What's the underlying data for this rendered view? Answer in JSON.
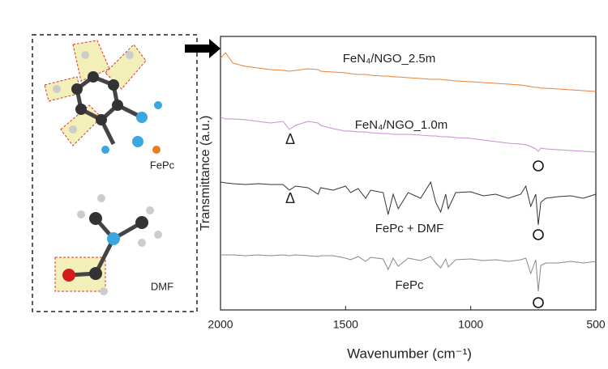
{
  "chart_data": {
    "type": "line",
    "xlabel": "Wavenumber (cm⁻¹)",
    "ylabel": "Transmittance (a.u.)",
    "xlim": [
      2000,
      500
    ],
    "xticks": [
      2000,
      1500,
      1000,
      500
    ],
    "ylim": [
      0,
      338
    ],
    "x": [
      2000,
      1980,
      1950,
      1900,
      1850,
      1800,
      1750,
      1725,
      1700,
      1650,
      1610,
      1600,
      1550,
      1500,
      1480,
      1450,
      1420,
      1400,
      1350,
      1330,
      1310,
      1290,
      1250,
      1200,
      1160,
      1140,
      1120,
      1100,
      1090,
      1060,
      1000,
      950,
      900,
      850,
      800,
      780,
      760,
      740,
      730,
      720,
      700,
      650,
      600,
      550,
      500
    ],
    "series": [
      {
        "name": "FeN₄/NGO_2.5m",
        "color": "#e8823a",
        "values": [
          311,
          318,
          305,
          301,
          299,
          297,
          296,
          295,
          296,
          298,
          297,
          295,
          294,
          293,
          292,
          291,
          291,
          290,
          289,
          289,
          288,
          288,
          287,
          286,
          285,
          285,
          285,
          284,
          284,
          283,
          282,
          281,
          280,
          279,
          278,
          277,
          276,
          275,
          275,
          274,
          274,
          273,
          272,
          271,
          270
        ]
      },
      {
        "name": "FeN₄/NGO_1.0m",
        "color": "#c88fd0",
        "values": [
          238,
          236,
          236,
          235,
          233,
          231,
          233,
          223,
          228,
          233,
          231,
          228,
          224,
          221,
          221,
          220,
          220,
          219,
          218,
          218,
          217,
          217,
          217,
          216,
          215,
          215,
          214,
          214,
          214,
          213,
          212,
          210,
          208,
          206,
          205,
          204,
          202,
          199,
          196,
          200,
          199,
          198,
          197,
          196,
          195
        ]
      },
      {
        "name": "FePc + DMF",
        "color": "#333333",
        "values": [
          158,
          157,
          156,
          155,
          156,
          155,
          155,
          148,
          153,
          151,
          143,
          151,
          148,
          153,
          145,
          150,
          138,
          148,
          145,
          118,
          143,
          125,
          145,
          138,
          158,
          133,
          121,
          143,
          125,
          145,
          146,
          141,
          143,
          138,
          143,
          153,
          128,
          143,
          105,
          133,
          138,
          140,
          141,
          138,
          143
        ]
      },
      {
        "name": "FePc",
        "color": "#888888",
        "values": [
          68,
          68,
          68,
          67,
          68,
          67,
          68,
          67,
          68,
          67,
          66,
          67,
          67,
          64,
          62,
          66,
          60,
          65,
          63,
          50,
          64,
          54,
          64,
          61,
          66,
          58,
          52,
          63,
          53,
          62,
          63,
          61,
          62,
          60,
          62,
          64,
          45,
          62,
          23,
          55,
          58,
          58,
          60,
          58,
          60
        ]
      }
    ],
    "annotations": [
      "Δ",
      "Δ"
    ]
  },
  "diagram": {
    "labels": [
      "FePc",
      "DMF"
    ]
  }
}
